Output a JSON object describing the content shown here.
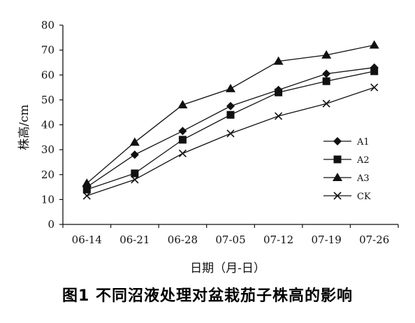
{
  "figure": {
    "caption": "图1  不同沼液处理对盆栽茄子株高的影响"
  },
  "chart_data": {
    "type": "line",
    "categories": [
      "06-14",
      "06-21",
      "06-28",
      "07-05",
      "07-12",
      "07-19",
      "07-26"
    ],
    "xlabel": "日期（月-日）",
    "ylabel": "株高/cm",
    "ylim": [
      0,
      80
    ],
    "yticks": [
      0,
      10,
      20,
      30,
      40,
      50,
      60,
      70,
      80
    ],
    "grid": false,
    "legend_position": "right",
    "series": [
      {
        "name": "A1",
        "marker": "diamond",
        "values": [
          15,
          28,
          37.5,
          47.5,
          54,
          60.5,
          63
        ]
      },
      {
        "name": "A2",
        "marker": "square",
        "values": [
          14,
          20.5,
          34,
          44,
          53,
          57.5,
          61.5
        ]
      },
      {
        "name": "A3",
        "marker": "triangle",
        "values": [
          16.5,
          33,
          48,
          54.5,
          65.5,
          68,
          72
        ]
      },
      {
        "name": "CK",
        "marker": "x",
        "values": [
          11.5,
          18,
          28.5,
          36.5,
          43.5,
          48.5,
          55
        ]
      }
    ],
    "colors": {
      "line": "#111111",
      "axis": "#111111"
    }
  }
}
